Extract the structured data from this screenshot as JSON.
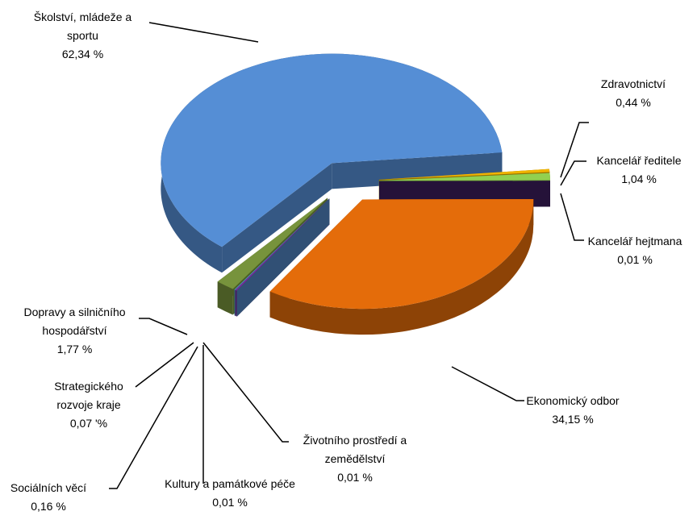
{
  "chart_data": {
    "type": "pie",
    "categories": [
      "Školství, mládeže a sportu",
      "Zdravotnictví",
      "Kancelář ředitele",
      "Kancelář hejtmana",
      "Ekonomický odbor",
      "Životního prostředí a zemědělství",
      "Kultury a památkové péče",
      "Sociálních věcí",
      "Strategického rozvoje kraje",
      "Dopravy a silničního hospodářství"
    ],
    "values": [
      62.34,
      0.44,
      1.04,
      0.01,
      34.15,
      0.01,
      0.01,
      0.16,
      0.07,
      1.77
    ],
    "value_labels": [
      "62,34 %",
      "0,44 %",
      "1,04 %",
      "0,01 %",
      "34,15 %",
      "0,01 %",
      "0,01 %",
      "0,16 %",
      "0,07 '%",
      "1,77 %"
    ],
    "colors": [
      "#558ed5",
      "#f0b400",
      "#92d050",
      "#3b1d5c",
      "#e46c0a",
      "#4f81bd",
      "#e0106a",
      "#7030a0",
      "#4bacc6",
      "#77933c"
    ]
  }
}
